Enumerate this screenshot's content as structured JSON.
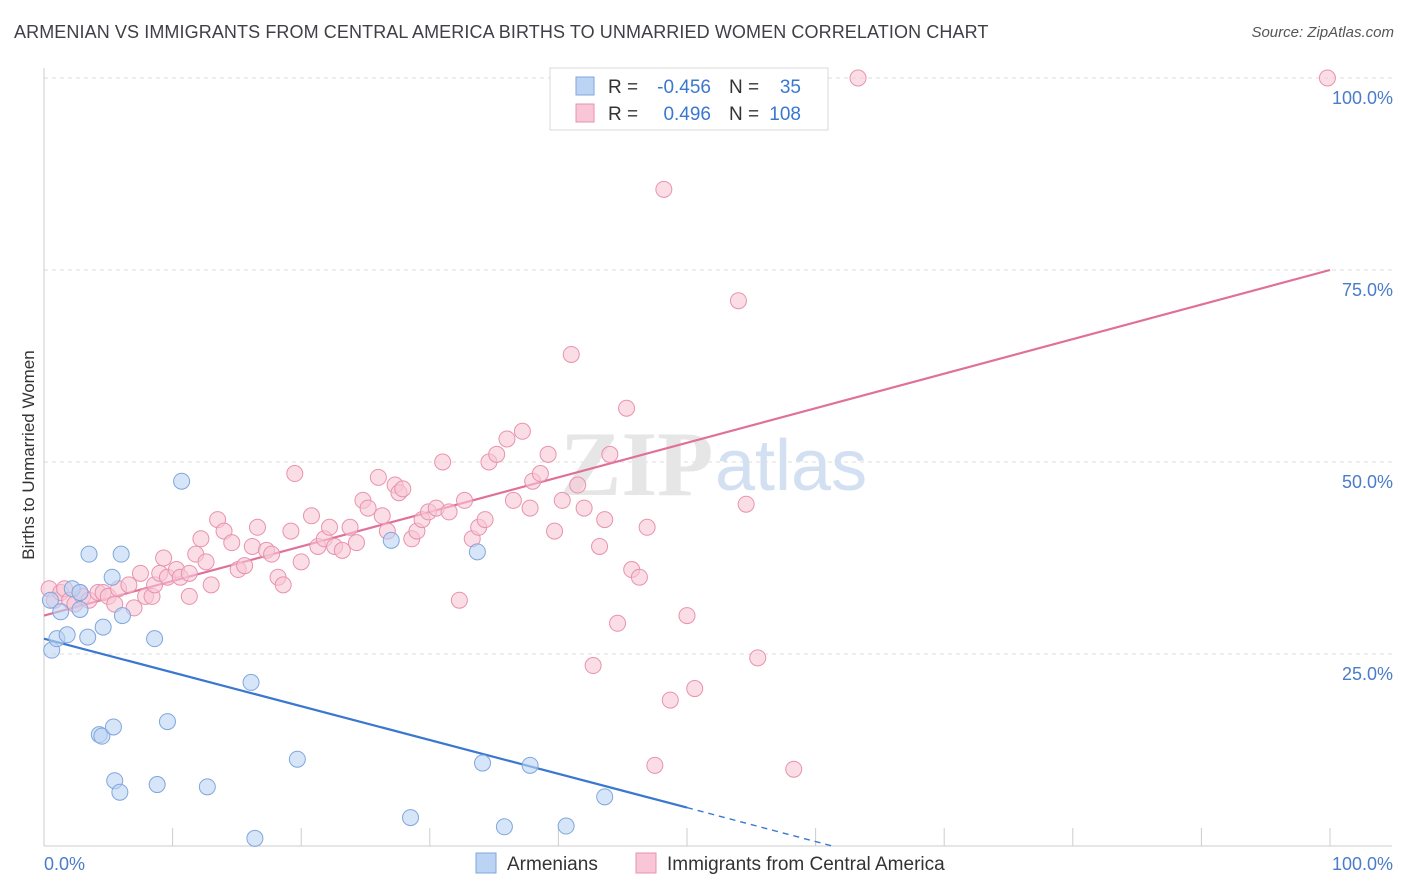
{
  "title": "ARMENIAN VS IMMIGRANTS FROM CENTRAL AMERICA BIRTHS TO UNMARRIED WOMEN CORRELATION CHART",
  "source": "Source: ZipAtlas.com",
  "watermark": {
    "zip": "ZIP",
    "atlas": "atlas"
  },
  "colors": {
    "blue_fill": "#bcd4f4",
    "blue_stroke": "#7fa6dc",
    "blue_line": "#3a78d0",
    "pink_fill": "#f8c6d6",
    "pink_stroke": "#e892b0",
    "pink_line": "#e0709a",
    "axis_text": "#4a7cc9",
    "grid": "#dddddd"
  },
  "legend": {
    "rows": [
      {
        "r_label": "R =",
        "r_value": "-0.456",
        "n_label": "N =",
        "n_value": "35"
      },
      {
        "r_label": "R =",
        "r_value": "0.496",
        "n_label": "N =",
        "n_value": "108"
      }
    ]
  },
  "bottom_legend": [
    "Armenians",
    "Immigrants from Central America"
  ],
  "chart_data": {
    "type": "scatter",
    "title": "ARMENIAN VS IMMIGRANTS FROM CENTRAL AMERICA BIRTHS TO UNMARRIED WOMEN CORRELATION CHART",
    "xlabel": "",
    "ylabel": "Births to Unmarried Women",
    "xlim": [
      0,
      100
    ],
    "ylim": [
      0,
      100
    ],
    "x_tick_labels": [
      "0.0%",
      "100.0%"
    ],
    "y_tick_labels": [
      "25.0%",
      "50.0%",
      "75.0%",
      "100.0%"
    ],
    "y_ticks": [
      25,
      50,
      75,
      100
    ],
    "grid": true,
    "legend_position": "top-center",
    "series": [
      {
        "name": "Armenians",
        "color": "#bcd4f4",
        "points": [
          [
            0.5,
            32
          ],
          [
            0.6,
            25.5
          ],
          [
            1.0,
            27
          ],
          [
            1.3,
            30.5
          ],
          [
            1.8,
            27.5
          ],
          [
            2.2,
            33.5
          ],
          [
            2.8,
            33
          ],
          [
            2.8,
            30.8
          ],
          [
            3.4,
            27.2
          ],
          [
            3.5,
            38
          ],
          [
            4.3,
            14.5
          ],
          [
            4.5,
            14.3
          ],
          [
            4.6,
            28.5
          ],
          [
            5.3,
            35
          ],
          [
            5.4,
            15.5
          ],
          [
            5.5,
            8.5
          ],
          [
            6.0,
            38
          ],
          [
            5.9,
            7
          ],
          [
            6.1,
            30
          ],
          [
            8.6,
            27
          ],
          [
            8.8,
            8
          ],
          [
            9.6,
            16.2
          ],
          [
            10.7,
            47.5
          ],
          [
            12.7,
            7.7
          ],
          [
            16.1,
            21.3
          ],
          [
            16.4,
            1
          ],
          [
            19.7,
            11.3
          ],
          [
            28.5,
            3.7
          ],
          [
            27.0,
            39.8
          ],
          [
            33.7,
            38.3
          ],
          [
            34.1,
            10.8
          ],
          [
            35.8,
            2.5
          ],
          [
            37.8,
            10.5
          ],
          [
            40.6,
            2.6
          ],
          [
            43.6,
            6.4
          ]
        ],
        "trend": [
          [
            0,
            27
          ],
          [
            50,
            5
          ]
        ],
        "trend_dashed_to": [
          61.3,
          0
        ]
      },
      {
        "name": "Immigrants from Central America",
        "color": "#f8c6d6",
        "points": [
          [
            0.4,
            33.5
          ],
          [
            0.8,
            32
          ],
          [
            1.3,
            33
          ],
          [
            1.6,
            33.5
          ],
          [
            2.0,
            32
          ],
          [
            2.4,
            31.5
          ],
          [
            2.8,
            33
          ],
          [
            3.0,
            32.5
          ],
          [
            3.5,
            32
          ],
          [
            4.2,
            33
          ],
          [
            4.6,
            33
          ],
          [
            5.0,
            32.5
          ],
          [
            5.5,
            31.5
          ],
          [
            5.8,
            33.5
          ],
          [
            6.6,
            34
          ],
          [
            7.0,
            31
          ],
          [
            7.5,
            35.5
          ],
          [
            7.9,
            32.5
          ],
          [
            8.4,
            32.5
          ],
          [
            8.6,
            34
          ],
          [
            9.0,
            35.5
          ],
          [
            9.3,
            37.5
          ],
          [
            9.6,
            35
          ],
          [
            10.3,
            36
          ],
          [
            10.6,
            35
          ],
          [
            11.3,
            35.5
          ],
          [
            11.3,
            32.5
          ],
          [
            11.8,
            38
          ],
          [
            12.2,
            40
          ],
          [
            12.6,
            37
          ],
          [
            13.0,
            34
          ],
          [
            13.5,
            42.5
          ],
          [
            14.0,
            41
          ],
          [
            14.6,
            39.5
          ],
          [
            15.1,
            36
          ],
          [
            15.6,
            36.5
          ],
          [
            16.2,
            39
          ],
          [
            16.6,
            41.5
          ],
          [
            17.3,
            38.5
          ],
          [
            17.7,
            38
          ],
          [
            18.2,
            35
          ],
          [
            18.6,
            34
          ],
          [
            19.2,
            41
          ],
          [
            19.5,
            48.5
          ],
          [
            20.0,
            37
          ],
          [
            20.8,
            43
          ],
          [
            21.3,
            39
          ],
          [
            21.8,
            40
          ],
          [
            22.2,
            41.5
          ],
          [
            22.6,
            39
          ],
          [
            23.2,
            38.5
          ],
          [
            23.8,
            41.5
          ],
          [
            24.3,
            39.5
          ],
          [
            24.8,
            45
          ],
          [
            25.2,
            44
          ],
          [
            26.0,
            48
          ],
          [
            26.3,
            43
          ],
          [
            26.7,
            41
          ],
          [
            27.3,
            47
          ],
          [
            27.6,
            46
          ],
          [
            27.9,
            46.5
          ],
          [
            28.6,
            40
          ],
          [
            29.0,
            41
          ],
          [
            29.4,
            42.5
          ],
          [
            29.9,
            43.5
          ],
          [
            30.5,
            44
          ],
          [
            31.0,
            50
          ],
          [
            31.5,
            43.5
          ],
          [
            32.3,
            32
          ],
          [
            32.7,
            45
          ],
          [
            33.3,
            40
          ],
          [
            33.8,
            41.5
          ],
          [
            34.3,
            42.5
          ],
          [
            34.6,
            50
          ],
          [
            35.2,
            51
          ],
          [
            36.0,
            53
          ],
          [
            36.5,
            45
          ],
          [
            37.2,
            54
          ],
          [
            37.8,
            44
          ],
          [
            38.0,
            47.5
          ],
          [
            38.6,
            48.5
          ],
          [
            39.2,
            51
          ],
          [
            39.7,
            41
          ],
          [
            40.3,
            45
          ],
          [
            41.0,
            64
          ],
          [
            41.5,
            47
          ],
          [
            42.0,
            44
          ],
          [
            42.7,
            23.5
          ],
          [
            43.2,
            39
          ],
          [
            43.6,
            42.5
          ],
          [
            44.0,
            51
          ],
          [
            44.6,
            29
          ],
          [
            45.3,
            57
          ],
          [
            45.7,
            36
          ],
          [
            46.3,
            35
          ],
          [
            46.9,
            41.5
          ],
          [
            47.5,
            10.5
          ],
          [
            48.2,
            85.5
          ],
          [
            48.7,
            19
          ],
          [
            50.0,
            30
          ],
          [
            50.6,
            20.5
          ],
          [
            54.0,
            71
          ],
          [
            54.6,
            44.5
          ],
          [
            55.5,
            24.5
          ],
          [
            58.3,
            10
          ],
          [
            63.3,
            100
          ],
          [
            99.8,
            100
          ]
        ],
        "trend": [
          [
            0,
            30
          ],
          [
            100,
            75
          ]
        ]
      }
    ]
  }
}
